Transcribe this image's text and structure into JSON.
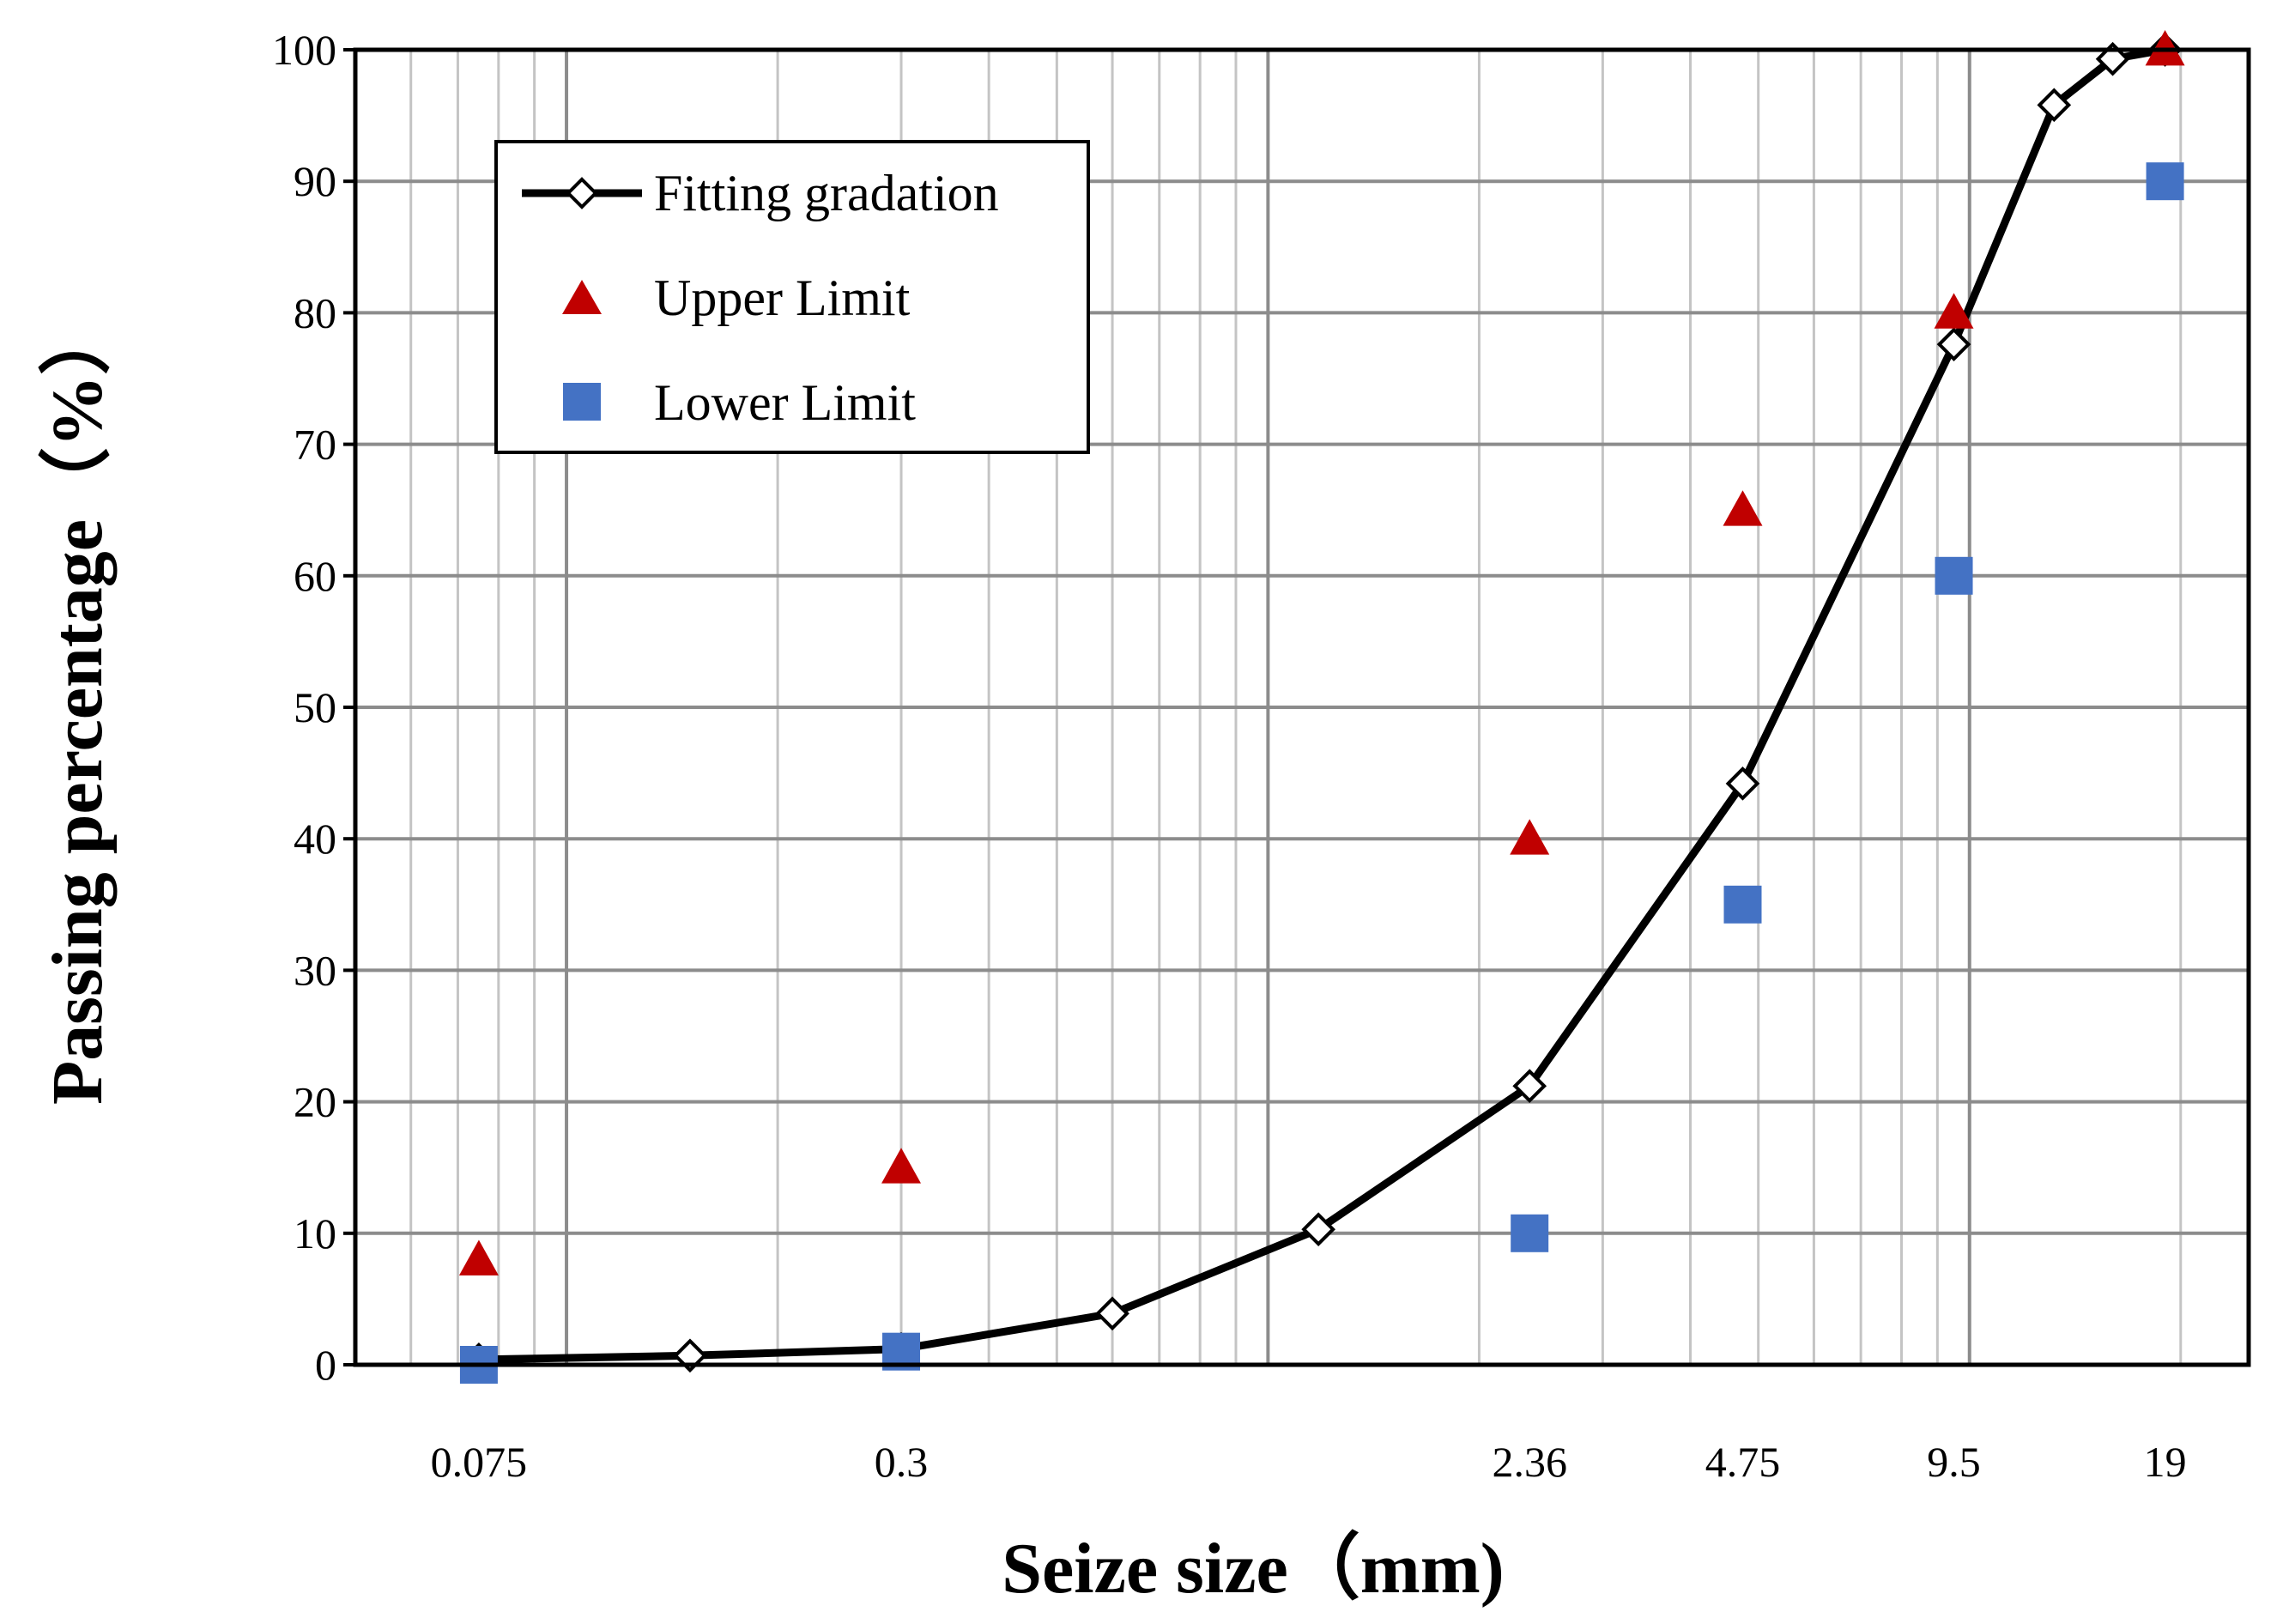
{
  "chart_data": {
    "type": "scatter",
    "xscale": "log",
    "xlim": [
      0.05,
      25
    ],
    "ylim": [
      0,
      100
    ],
    "xticks": [
      0.075,
      0.3,
      2.36,
      4.75,
      9.5,
      19
    ],
    "xtick_labels": [
      "0.075",
      "0.3",
      "2.36",
      "4.75",
      "9.5",
      "19"
    ],
    "yticks": [
      0,
      10,
      20,
      30,
      40,
      50,
      60,
      70,
      80,
      90,
      100
    ],
    "ytick_labels": [
      "0",
      "10",
      "20",
      "30",
      "40",
      "50",
      "60",
      "70",
      "80",
      "90",
      "100"
    ],
    "xlabel": "Seize size（mm)",
    "ylabel": "Passing percentage（%）",
    "grid": true,
    "legend_position": "top-left",
    "series": [
      {
        "name": "Fitting gradation",
        "kind": "line",
        "marker": "diamond-open",
        "color": "#000000",
        "x": [
          0.075,
          0.15,
          0.3,
          0.6,
          1.18,
          2.36,
          4.75,
          9.5,
          13.2,
          16,
          19
        ],
        "y": [
          0.4,
          0.7,
          1.2,
          3.9,
          10.3,
          21.2,
          44.2,
          77.6,
          95.8,
          99.3,
          100
        ]
      },
      {
        "name": "Upper Limit",
        "kind": "scatter",
        "marker": "triangle",
        "color": "#c00000",
        "x": [
          0.075,
          0.3,
          2.36,
          4.75,
          9.5,
          19
        ],
        "y": [
          8,
          15,
          40,
          65,
          80,
          100
        ]
      },
      {
        "name": "Lower Limit",
        "kind": "scatter",
        "marker": "square",
        "color": "#4472c4",
        "x": [
          0.075,
          0.3,
          2.36,
          4.75,
          9.5,
          19
        ],
        "y": [
          0,
          1,
          10,
          35,
          60,
          90
        ]
      }
    ]
  }
}
